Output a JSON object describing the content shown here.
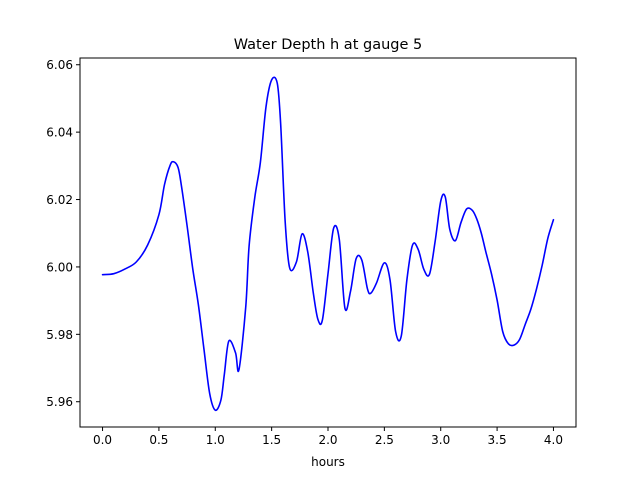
{
  "chart_data": {
    "type": "line",
    "title": "Water Depth h at gauge 5",
    "xlabel": "hours",
    "ylabel": "",
    "xlim": [
      -0.2,
      4.2
    ],
    "ylim": [
      5.9525,
      6.062
    ],
    "xticks": [
      0.0,
      0.5,
      1.0,
      1.5,
      2.0,
      2.5,
      3.0,
      3.5,
      4.0
    ],
    "xtick_labels": [
      "0.0",
      "0.5",
      "1.0",
      "1.5",
      "2.0",
      "2.5",
      "3.0",
      "3.5",
      "4.0"
    ],
    "yticks": [
      5.96,
      5.98,
      6.0,
      6.02,
      6.04,
      6.06
    ],
    "ytick_labels": [
      "5.96",
      "5.98",
      "6.00",
      "6.02",
      "6.04",
      "6.06"
    ],
    "grid": false,
    "series": [
      {
        "color": "#0000ff",
        "x": [
          0.0,
          0.1,
          0.2,
          0.3,
          0.4,
          0.5,
          0.55,
          0.6,
          0.63,
          0.67,
          0.7,
          0.75,
          0.8,
          0.85,
          0.9,
          0.95,
          1.0,
          1.05,
          1.08,
          1.12,
          1.18,
          1.21,
          1.27,
          1.3,
          1.35,
          1.4,
          1.45,
          1.5,
          1.55,
          1.58,
          1.62,
          1.66,
          1.72,
          1.77,
          1.82,
          1.87,
          1.91,
          1.95,
          2.0,
          2.05,
          2.1,
          2.15,
          2.2,
          2.25,
          2.3,
          2.35,
          2.38,
          2.43,
          2.5,
          2.55,
          2.6,
          2.65,
          2.7,
          2.75,
          2.8,
          2.85,
          2.9,
          2.95,
          3.0,
          3.04,
          3.08,
          3.13,
          3.18,
          3.23,
          3.28,
          3.32,
          3.36,
          3.4,
          3.45,
          3.5,
          3.55,
          3.6,
          3.65,
          3.7,
          3.75,
          3.8,
          3.85,
          3.9,
          3.95,
          4.0
        ],
        "y": [
          5.9977,
          5.998,
          5.9994,
          6.0015,
          6.0065,
          6.0155,
          6.0245,
          6.0302,
          6.0312,
          6.0295,
          6.024,
          6.0122,
          5.9995,
          5.9888,
          5.9755,
          5.9625,
          5.9575,
          5.9605,
          5.968,
          5.978,
          5.9745,
          5.9695,
          5.988,
          6.0062,
          6.0205,
          6.031,
          6.0475,
          6.0555,
          6.0545,
          6.0425,
          6.0135,
          5.9997,
          6.0015,
          6.0098,
          6.0045,
          5.9922,
          5.9845,
          5.9842,
          5.998,
          6.0115,
          6.0082,
          5.9878,
          5.9928,
          6.0025,
          6.002,
          5.9935,
          5.9922,
          5.9952,
          6.0012,
          5.9962,
          5.9808,
          5.9795,
          5.9962,
          6.0065,
          6.0052,
          5.9993,
          5.9978,
          6.0075,
          6.0195,
          6.0208,
          6.0112,
          6.0078,
          6.0132,
          6.0172,
          6.0168,
          6.0142,
          6.01,
          6.0045,
          5.998,
          5.9902,
          5.9808,
          5.9772,
          5.9768,
          5.9785,
          5.983,
          5.9875,
          5.9935,
          6.0005,
          6.0085,
          6.014
        ]
      }
    ]
  }
}
